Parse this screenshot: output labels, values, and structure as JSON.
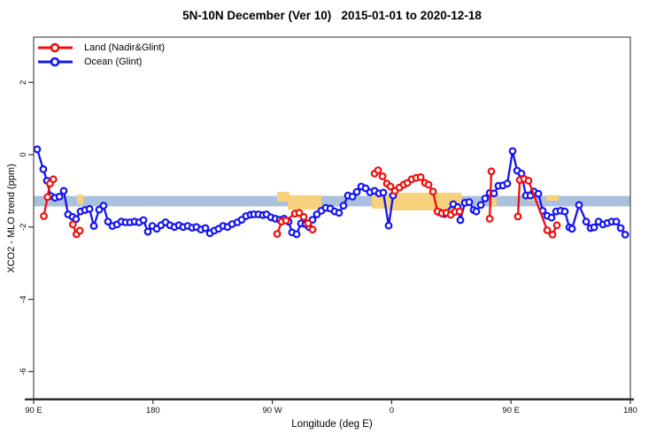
{
  "title": "5N-10N December (Ver 10)   2015-01-01 to 2020-12-18",
  "legend": {
    "items": [
      {
        "label": "Land (Nadir&Glint)",
        "color": "#f20d0d"
      },
      {
        "label": "Ocean (Glint)",
        "color": "#1414f0"
      }
    ]
  },
  "axes": {
    "x": {
      "label": "Longitude (deg E)",
      "ticks": [
        {
          "lon": 90,
          "label": "90 E"
        },
        {
          "lon": 180,
          "label": "180"
        },
        {
          "lon": 270,
          "label": "90 W"
        },
        {
          "lon": 360,
          "label": "0"
        },
        {
          "lon": 450,
          "label": "90 E"
        },
        {
          "lon": 540,
          "label": "180"
        }
      ]
    },
    "y": {
      "label": "XCO2 - MLO trend (ppm)",
      "ticks": [
        {
          "value": 2,
          "label": "2"
        },
        {
          "value": 0,
          "label": "0"
        },
        {
          "value": -2,
          "label": "-2"
        },
        {
          "value": -4,
          "label": "-4"
        },
        {
          "value": -6,
          "label": "-6"
        }
      ]
    }
  },
  "chart_data": {
    "type": "line",
    "title": "5N-10N December (Ver 10)   2015-01-01 to 2020-12-18",
    "xlabel": "Longitude (deg E)",
    "ylabel": "XCO2 - MLO trend (ppm)",
    "xlim": [
      90,
      540
    ],
    "ylim": [
      -6.75,
      3.25
    ],
    "grid": false,
    "legend_position": "top-left",
    "highlight_band": {
      "y_from": -1.14,
      "y_to": -1.43,
      "color": "#aac1de"
    },
    "land_patches": {
      "color": "#f7d17c",
      "regions": [
        [
          122.7,
          127.4,
          -1.1,
          -1.37
        ],
        [
          273.6,
          283.0,
          -1.03,
          -1.3
        ],
        [
          281.6,
          307.0,
          -1.12,
          -1.52
        ],
        [
          345.0,
          359.1,
          -1.12,
          -1.49
        ],
        [
          357.1,
          412.5,
          -1.05,
          -1.54
        ],
        [
          435.8,
          439.2,
          -1.15,
          -1.44
        ],
        [
          461.9,
          467.9,
          -1.0,
          -1.27
        ],
        [
          476.6,
          485.9,
          -1.12,
          -1.27
        ]
      ]
    },
    "series": [
      {
        "name": "Ocean (Glint)",
        "color": "#1414f0",
        "marker": "open-circle",
        "segments": [
          [
            [
              92.7,
              0.15
            ],
            [
              97.3,
              -0.4
            ],
            [
              100.0,
              -0.72
            ],
            [
              102.7,
              -1.14
            ],
            [
              106.0,
              -1.19
            ],
            [
              109.4,
              -1.16
            ],
            [
              112.7,
              -1.0
            ],
            [
              116.0,
              -1.65
            ],
            [
              119.4,
              -1.72
            ],
            [
              122.0,
              -1.78
            ],
            [
              125.4,
              -1.57
            ],
            [
              128.7,
              -1.53
            ],
            [
              132.1,
              -1.5
            ],
            [
              135.4,
              -1.97
            ],
            [
              139.4,
              -1.52
            ],
            [
              142.7,
              -1.41
            ],
            [
              146.1,
              -1.85
            ],
            [
              149.4,
              -1.97
            ],
            [
              152.8,
              -1.93
            ],
            [
              156.1,
              -1.85
            ],
            [
              159.4,
              -1.87
            ],
            [
              162.8,
              -1.87
            ],
            [
              166.1,
              -1.85
            ],
            [
              169.5,
              -1.87
            ],
            [
              172.8,
              -1.81
            ],
            [
              176.1,
              -2.13
            ],
            [
              179.5,
              -1.97
            ],
            [
              182.8,
              -2.05
            ],
            [
              186.1,
              -1.95
            ],
            [
              189.5,
              -1.87
            ],
            [
              192.8,
              -1.95
            ],
            [
              196.2,
              -2.0
            ],
            [
              199.5,
              -1.95
            ],
            [
              202.8,
              -2.0
            ],
            [
              206.2,
              -1.97
            ],
            [
              209.5,
              -2.02
            ],
            [
              212.8,
              -2.0
            ],
            [
              216.2,
              -2.07
            ],
            [
              219.5,
              -2.03
            ],
            [
              222.9,
              -2.17
            ],
            [
              226.2,
              -2.1
            ],
            [
              229.5,
              -2.05
            ],
            [
              232.9,
              -1.97
            ],
            [
              236.2,
              -2.0
            ],
            [
              239.6,
              -1.92
            ],
            [
              243.6,
              -1.87
            ],
            [
              246.9,
              -1.8
            ],
            [
              250.2,
              -1.7
            ],
            [
              253.6,
              -1.66
            ],
            [
              256.2,
              -1.65
            ],
            [
              259.6,
              -1.65
            ],
            [
              262.9,
              -1.67
            ],
            [
              265.6,
              -1.65
            ],
            [
              268.9,
              -1.73
            ],
            [
              272.3,
              -1.77
            ],
            [
              275.6,
              -1.8
            ],
            [
              278.9,
              -1.77
            ],
            [
              282.3,
              -1.85
            ],
            [
              284.9,
              -2.15
            ],
            [
              288.3,
              -2.2
            ],
            [
              291.6,
              -1.9
            ],
            [
              295.0,
              -1.92
            ],
            [
              297.6,
              -2.0
            ],
            [
              300.3,
              -1.8
            ],
            [
              303.6,
              -1.65
            ],
            [
              307.0,
              -1.55
            ],
            [
              310.3,
              -1.47
            ],
            [
              313.7,
              -1.49
            ],
            [
              317.0,
              -1.57
            ],
            [
              320.3,
              -1.61
            ],
            [
              323.7,
              -1.41
            ],
            [
              327.0,
              -1.13
            ],
            [
              330.4,
              -1.16
            ],
            [
              333.7,
              -1.03
            ],
            [
              337.0,
              -0.88
            ],
            [
              340.4,
              -0.93
            ],
            [
              343.7,
              -1.04
            ],
            [
              347.1,
              -1.0
            ],
            [
              350.4,
              -1.07
            ],
            [
              353.7,
              -1.05
            ],
            [
              357.7,
              -1.96
            ],
            [
              361.1,
              -1.13
            ]
          ],
          [
            [
              396.5,
              -1.6
            ],
            [
              399.8,
              -1.64
            ],
            [
              406.5,
              -1.37
            ],
            [
              409.8,
              -1.45
            ],
            [
              411.8,
              -1.81
            ],
            [
              415.2,
              -1.33
            ],
            [
              418.5,
              -1.31
            ],
            [
              421.8,
              -1.53
            ],
            [
              423.8,
              -1.57
            ],
            [
              427.2,
              -1.39
            ],
            [
              430.5,
              -1.21
            ],
            [
              433.9,
              -1.06
            ],
            [
              437.2,
              -1.07
            ],
            [
              440.5,
              -0.86
            ],
            [
              443.9,
              -0.85
            ],
            [
              447.2,
              -0.8
            ],
            [
              451.2,
              0.1
            ],
            [
              454.6,
              -0.44
            ],
            [
              457.9,
              -0.52
            ],
            [
              461.2,
              -1.13
            ],
            [
              464.6,
              -1.13
            ],
            [
              467.2,
              -1.02
            ],
            [
              470.6,
              -1.08
            ],
            [
              473.9,
              -1.55
            ],
            [
              477.3,
              -1.69
            ],
            [
              480.6,
              -1.74
            ],
            [
              484.0,
              -1.57
            ],
            [
              487.3,
              -1.55
            ],
            [
              490.6,
              -1.57
            ],
            [
              494.0,
              -2.01
            ],
            [
              496.0,
              -2.05
            ],
            [
              501.3,
              -1.39
            ],
            [
              506.7,
              -1.85
            ],
            [
              510.0,
              -2.03
            ],
            [
              512.7,
              -2.01
            ],
            [
              516.0,
              -1.85
            ],
            [
              519.4,
              -1.93
            ],
            [
              522.7,
              -1.89
            ],
            [
              526.0,
              -1.85
            ],
            [
              529.4,
              -1.85
            ],
            [
              532.7,
              -2.03
            ],
            [
              536.1,
              -2.21
            ]
          ]
        ]
      },
      {
        "name": "Land (Nadir&Glint)",
        "color": "#f20d0d",
        "marker": "open-circle",
        "segments": [
          [
            [
              97.7,
              -1.7
            ],
            [
              100.5,
              -1.17
            ],
            [
              102.3,
              -0.8
            ],
            [
              104.9,
              -0.68
            ]
          ],
          [
            [
              119.6,
              -1.93
            ],
            [
              122.3,
              -2.2
            ],
            [
              124.8,
              -2.1
            ]
          ],
          [
            [
              273.7,
              -2.19
            ],
            [
              277.0,
              -1.85
            ],
            [
              280.3,
              -1.82
            ],
            [
              287.0,
              -1.63
            ],
            [
              290.3,
              -1.61
            ],
            [
              293.7,
              -1.72
            ],
            [
              297.0,
              -1.9
            ],
            [
              300.4,
              -2.07
            ]
          ],
          [
            [
              347.1,
              -0.52
            ],
            [
              349.8,
              -0.43
            ],
            [
              353.1,
              -0.6
            ],
            [
              356.4,
              -0.8
            ],
            [
              359.1,
              -0.88
            ],
            [
              362.4,
              -1.0
            ],
            [
              365.8,
              -0.91
            ],
            [
              369.1,
              -0.83
            ],
            [
              371.8,
              -0.78
            ],
            [
              375.1,
              -0.68
            ],
            [
              378.5,
              -0.64
            ],
            [
              381.8,
              -0.62
            ],
            [
              385.1,
              -0.78
            ],
            [
              387.8,
              -0.83
            ],
            [
              391.2,
              -1.02
            ],
            [
              394.5,
              -1.57
            ],
            [
              397.8,
              -1.62
            ],
            [
              401.2,
              -1.61
            ],
            [
              404.5,
              -1.66
            ],
            [
              407.8,
              -1.58
            ],
            [
              411.2,
              -1.57
            ]
          ],
          [
            [
              433.9,
              -1.77
            ],
            [
              435.2,
              -0.46
            ]
          ],
          [
            [
              455.2,
              -1.71
            ],
            [
              456.6,
              -0.7
            ],
            [
              459.9,
              -0.67
            ],
            [
              463.2,
              -0.72
            ],
            [
              477.3,
              -2.09
            ],
            [
              481.3,
              -2.21
            ],
            [
              484.6,
              -1.95
            ]
          ]
        ]
      }
    ]
  }
}
